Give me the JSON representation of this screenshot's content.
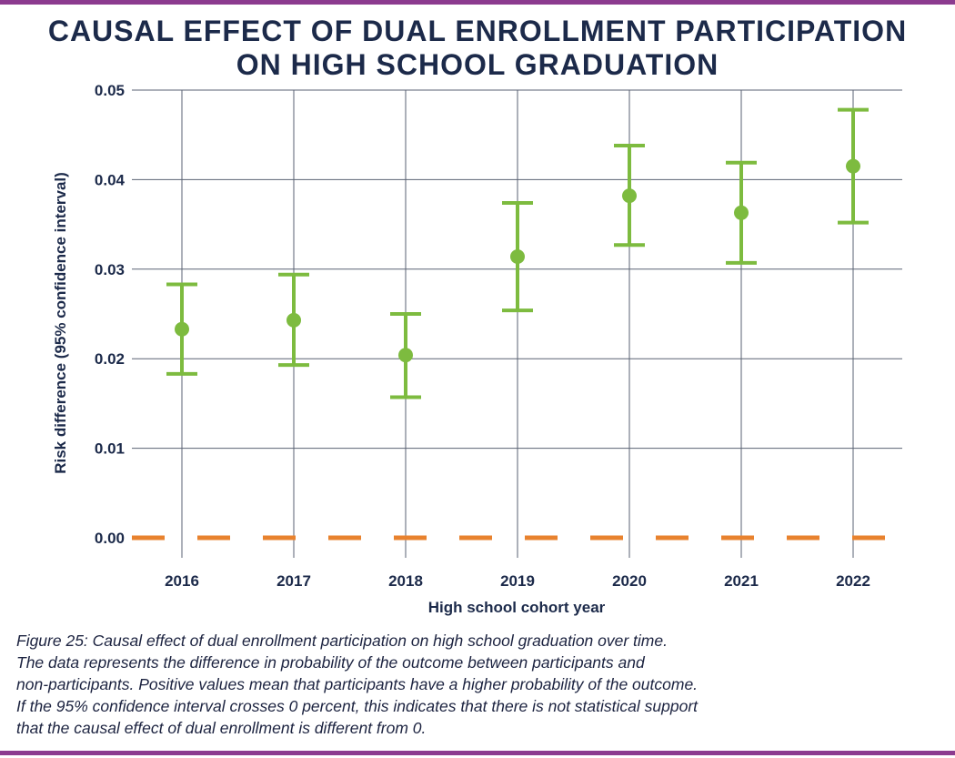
{
  "colors": {
    "rule": "#8c3b8f",
    "text": "#1c2a4a",
    "grid": "#5a6273",
    "marker": "#7dbb3f",
    "zero_line": "#e8822e"
  },
  "chart_data": {
    "type": "scatter",
    "title_lines": [
      "CAUSAL EFFECT OF DUAL ENROLLMENT PARTICIPATION",
      "ON HIGH SCHOOL GRADUATION"
    ],
    "xlabel": "High school cohort year",
    "ylabel": "Risk difference (95% confidence interval)",
    "categories": [
      "2016",
      "2017",
      "2018",
      "2019",
      "2020",
      "2021",
      "2022"
    ],
    "values": [
      0.0233,
      0.0243,
      0.0204,
      0.0314,
      0.0382,
      0.0363,
      0.0415
    ],
    "ci_lower": [
      0.0183,
      0.0193,
      0.0157,
      0.0254,
      0.0327,
      0.0307,
      0.0352
    ],
    "ci_upper": [
      0.0283,
      0.0294,
      0.025,
      0.0374,
      0.0438,
      0.0419,
      0.0478
    ],
    "yticks": [
      "0.00",
      "0.01",
      "0.02",
      "0.03",
      "0.04",
      "0.05"
    ],
    "ylim": [
      0,
      0.05
    ],
    "reference_line": 0,
    "grid": true
  },
  "caption_lines": [
    "Figure 25: Causal effect of dual enrollment participation on high school graduation over time.",
    "The data represents the difference in probability of the outcome between participants and",
    "non-participants. Positive values mean that participants have a higher probability of the outcome.",
    "If the 95% confidence interval crosses 0 percent, this indicates that there is not statistical support",
    "that the causal effect of dual enrollment is different from 0."
  ]
}
